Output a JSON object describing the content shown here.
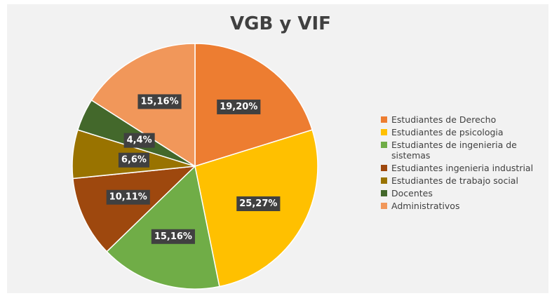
{
  "chart_data": {
    "type": "pie",
    "title": "VGB y VIF",
    "categories": [
      "Estudiantes de Derecho",
      "Estudiantes de psicologia",
      "Estudiantes de ingenieria de sistemas",
      "Estudiantes ingenieria industrial",
      "Estudiantes de trabajo social",
      "Docentes",
      "Administrativos"
    ],
    "values": [
      19,
      25,
      15,
      10,
      6,
      4,
      15
    ],
    "value_labels": [
      "19,20%",
      "25,27%",
      "15,16%",
      "10,11%",
      "6,6%",
      "4,4%",
      "15,16%"
    ],
    "colors": [
      "#ED7D31",
      "#FFC000",
      "#70AD47",
      "#9E480E",
      "#997300",
      "#43682B",
      "#F1975A"
    ],
    "legend": "right"
  }
}
